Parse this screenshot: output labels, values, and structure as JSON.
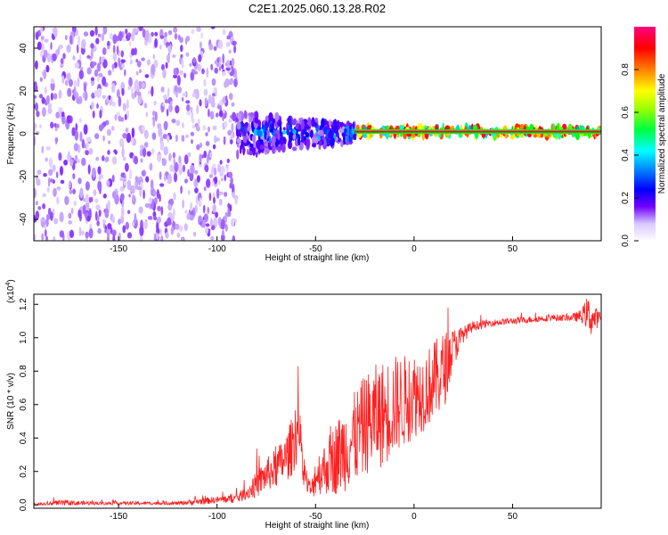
{
  "title": "C2E1.2025.060.13.28.R02",
  "chart_data": [
    {
      "type": "heatmap",
      "xlabel": "Height of straight line (km)",
      "ylabel": "Frequency (Hz)",
      "xlim": [
        -193,
        95
      ],
      "ylim": [
        -50,
        50
      ],
      "x_ticks": [
        -150,
        -100,
        -50,
        0,
        50
      ],
      "y_ticks": [
        -40,
        -20,
        0,
        20,
        40
      ],
      "colorbar": {
        "label": "Normalized spectral amplitude",
        "range": [
          0,
          1
        ],
        "ticks": [
          0.0,
          0.2,
          0.4,
          0.6,
          0.8
        ],
        "colors": [
          "#ffffff",
          "#c8a8ff",
          "#6a00ff",
          "#0000ff",
          "#00ffff",
          "#00ff00",
          "#ffff00",
          "#ff8000",
          "#ff0000",
          "#ff0080"
        ]
      },
      "regions": [
        {
          "x": [
            -193,
            -90
          ],
          "description_level": 0.3,
          "freq_band": [
            -50,
            50
          ]
        },
        {
          "x": [
            -90,
            -30
          ],
          "description_level": 0.45,
          "freq_band": [
            -10,
            10
          ]
        },
        {
          "x": [
            -30,
            95
          ],
          "description_level": 0.95,
          "freq_band": [
            -1,
            3
          ]
        }
      ]
    },
    {
      "type": "line",
      "xlabel": "Height of straight line (km)",
      "ylabel": "SNR (10 * v/v)",
      "y_multiplier": "(x10",
      "y_multiplier_exp": "4",
      "xlim": [
        -193,
        95
      ],
      "ylim": [
        -0.02,
        1.26
      ],
      "x_ticks": [
        -150,
        -100,
        -50,
        0,
        50
      ],
      "y_ticks": [
        0.0,
        0.2,
        0.4,
        0.6,
        0.8,
        1.0,
        1.2
      ],
      "series": [
        {
          "color": "#ff2020",
          "x": [
            -193,
            -180,
            -160,
            -140,
            -120,
            -110,
            -100,
            -90,
            -85,
            -80,
            -75,
            -70,
            -65,
            -62,
            -60,
            -58,
            -56,
            -54,
            -52,
            -50,
            -45,
            -40,
            -35,
            -30,
            -25,
            -20,
            -15,
            -10,
            -5,
            0,
            5,
            10,
            15,
            20,
            25,
            30,
            40,
            50,
            60,
            70,
            80,
            85,
            88,
            90,
            95
          ],
          "values": [
            0.0,
            0.01,
            0.01,
            0.01,
            0.01,
            0.02,
            0.03,
            0.04,
            0.07,
            0.12,
            0.18,
            0.22,
            0.28,
            0.35,
            0.45,
            0.38,
            0.22,
            0.12,
            0.08,
            0.18,
            0.22,
            0.28,
            0.34,
            0.4,
            0.48,
            0.52,
            0.55,
            0.6,
            0.62,
            0.66,
            0.68,
            0.74,
            0.8,
            0.94,
            1.02,
            1.07,
            1.09,
            1.1,
            1.11,
            1.12,
            1.12,
            1.13,
            1.15,
            1.11,
            1.12
          ],
          "spread": [
            0.01,
            0.02,
            0.01,
            0.01,
            0.01,
            0.02,
            0.02,
            0.03,
            0.04,
            0.08,
            0.1,
            0.12,
            0.14,
            0.18,
            0.22,
            0.18,
            0.1,
            0.06,
            0.06,
            0.12,
            0.16,
            0.22,
            0.26,
            0.28,
            0.3,
            0.32,
            0.32,
            0.3,
            0.28,
            0.26,
            0.24,
            0.24,
            0.24,
            0.12,
            0.05,
            0.03,
            0.02,
            0.02,
            0.02,
            0.02,
            0.02,
            0.04,
            0.1,
            0.1,
            0.03
          ]
        }
      ]
    }
  ]
}
